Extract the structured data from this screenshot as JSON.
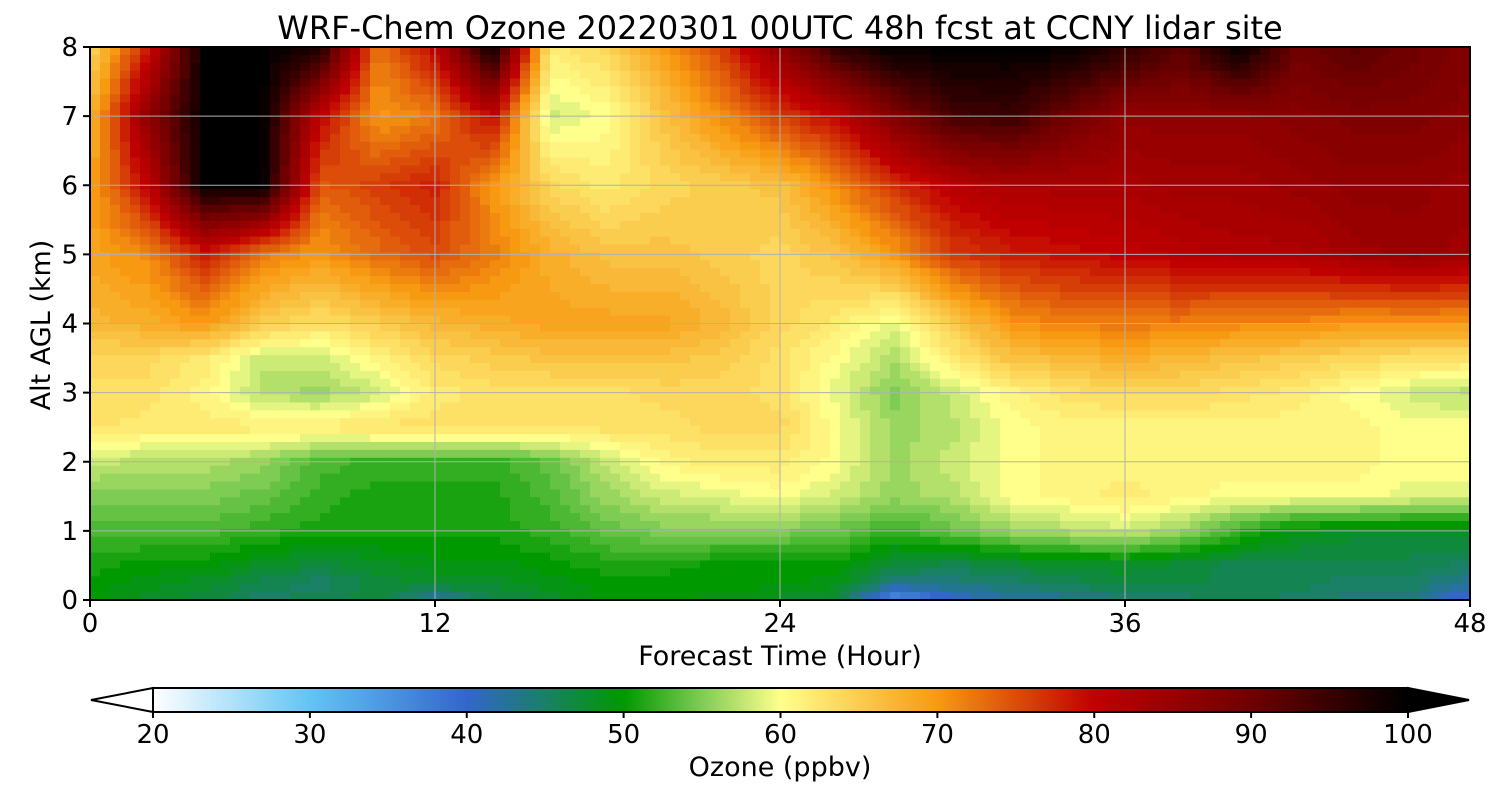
{
  "chart_data": {
    "type": "heatmap",
    "title": "WRF-Chem Ozone  20220301 00UTC 48h fcst at CCNY lidar site",
    "xlabel": "Forecast Time (Hour)",
    "ylabel": "Alt AGL (km)",
    "xlim": [
      0,
      48
    ],
    "ylim": [
      0,
      8
    ],
    "x_ticks": [
      0,
      12,
      24,
      36,
      48
    ],
    "y_ticks": [
      0,
      1,
      2,
      3,
      4,
      5,
      6,
      7,
      8
    ],
    "grid": true,
    "colorbar": {
      "label": "Ozone  (ppbv)",
      "range": [
        20,
        100
      ],
      "ticks": [
        20,
        30,
        40,
        50,
        60,
        70,
        80,
        90,
        100
      ],
      "extend": "both",
      "stops": [
        {
          "value": 20,
          "color": "#ffffff"
        },
        {
          "value": 30,
          "color": "#62c4f4"
        },
        {
          "value": 40,
          "color": "#3366cc"
        },
        {
          "value": 50,
          "color": "#009900"
        },
        {
          "value": 55,
          "color": "#7fcc55"
        },
        {
          "value": 60,
          "color": "#ffff8c"
        },
        {
          "value": 70,
          "color": "#f79a12"
        },
        {
          "value": 80,
          "color": "#c00000"
        },
        {
          "value": 90,
          "color": "#700000"
        },
        {
          "value": 100,
          "color": "#000000"
        }
      ]
    },
    "x": [
      0,
      2,
      4,
      6,
      8,
      10,
      12,
      14,
      16,
      18,
      20,
      22,
      24,
      26,
      28,
      30,
      32,
      34,
      36,
      38,
      40,
      42,
      44,
      46,
      48
    ],
    "y": [
      0,
      0.25,
      0.5,
      1,
      1.5,
      2,
      2.5,
      3,
      3.5,
      4,
      5,
      6,
      7,
      8
    ],
    "z": [
      [
        50,
        48,
        47,
        45,
        46,
        47,
        42,
        46,
        48,
        50,
        50,
        49,
        48,
        47,
        35,
        40,
        42,
        43,
        44,
        45,
        46,
        45,
        44,
        44,
        38
      ],
      [
        50,
        49,
        48,
        46,
        45,
        47,
        48,
        48,
        49,
        50,
        50,
        50,
        50,
        49,
        44,
        44,
        45,
        46,
        47,
        47,
        46,
        46,
        45,
        45,
        43
      ],
      [
        51,
        50,
        50,
        48,
        47,
        48,
        49,
        49,
        50,
        51,
        51,
        50,
        50,
        50,
        47,
        46,
        47,
        48,
        48,
        47,
        46,
        46,
        46,
        46,
        45
      ],
      [
        53,
        53,
        53,
        52,
        51,
        51,
        51,
        51,
        52,
        54,
        55,
        55,
        55,
        54,
        52,
        54,
        56,
        57,
        58,
        56,
        52,
        49,
        48,
        48,
        48
      ],
      [
        55,
        55,
        55,
        54,
        52,
        51,
        51,
        51,
        53,
        56,
        58,
        59,
        60,
        58,
        56,
        57,
        60,
        61,
        62,
        61,
        60,
        60,
        60,
        59,
        59
      ],
      [
        58,
        57,
        57,
        56,
        53,
        52,
        52,
        52,
        54,
        58,
        61,
        62,
        62,
        60,
        56,
        58,
        60,
        61,
        61,
        61,
        61,
        61,
        61,
        60,
        60
      ],
      [
        63,
        62,
        62,
        62,
        62,
        63,
        63,
        63,
        63,
        63,
        63,
        64,
        64,
        60,
        56,
        57,
        60,
        61,
        61,
        61,
        61,
        61,
        61,
        60,
        60
      ],
      [
        63,
        63,
        61,
        57,
        56,
        58,
        62,
        63,
        63,
        63,
        64,
        64,
        63,
        59,
        55,
        58,
        61,
        63,
        64,
        64,
        63,
        62,
        60,
        58,
        57
      ],
      [
        64,
        64,
        62,
        58,
        58,
        61,
        64,
        65,
        66,
        66,
        66,
        65,
        63,
        60,
        57,
        62,
        66,
        67,
        68,
        67,
        66,
        65,
        64,
        63,
        63
      ],
      [
        67,
        68,
        70,
        65,
        63,
        65,
        67,
        68,
        69,
        69,
        69,
        67,
        64,
        62,
        59,
        65,
        70,
        72,
        72,
        72,
        71,
        71,
        70,
        70,
        70
      ],
      [
        69,
        71,
        78,
        72,
        70,
        73,
        75,
        72,
        68,
        66,
        66,
        65,
        64,
        66,
        70,
        76,
        78,
        79,
        80,
        81,
        82,
        82,
        84,
        85,
        84
      ],
      [
        69,
        80,
        100,
        100,
        74,
        76,
        78,
        70,
        64,
        62,
        64,
        65,
        66,
        71,
        77,
        81,
        83,
        83,
        83,
        84,
        84,
        85,
        86,
        86,
        85
      ],
      [
        67,
        86,
        100,
        100,
        80,
        70,
        72,
        80,
        58,
        60,
        66,
        71,
        76,
        80,
        88,
        94,
        95,
        90,
        86,
        86,
        86,
        87,
        88,
        88,
        87
      ],
      [
        64,
        78,
        100,
        100,
        98,
        72,
        80,
        100,
        62,
        64,
        70,
        76,
        86,
        96,
        100,
        100,
        100,
        100,
        96,
        92,
        100,
        90,
        92,
        90,
        88
      ]
    ]
  }
}
